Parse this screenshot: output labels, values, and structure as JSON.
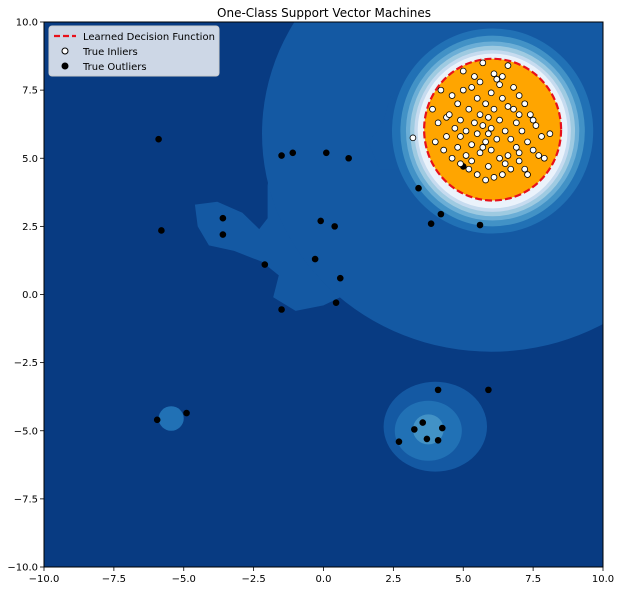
{
  "chart_data": {
    "type": "scatter",
    "title": "One-Class Support Vector Machines",
    "xlabel": "",
    "ylabel": "",
    "xlim": [
      -10,
      10
    ],
    "ylim": [
      -10,
      10
    ],
    "grid": false,
    "legend_position": "top-left",
    "xticks": [
      "−10.0",
      "−7.5",
      "−5.0",
      "−2.5",
      "0.0",
      "2.5",
      "5.0",
      "7.5",
      "10.0"
    ],
    "xtick_values": [
      -10,
      -7.5,
      -5,
      -2.5,
      0,
      2.5,
      5,
      7.5,
      10
    ],
    "yticks": [
      "10.0",
      "7.5",
      "5.0",
      "2.5",
      "0.0",
      "−2.5",
      "−5.0",
      "−7.5",
      "−10.0"
    ],
    "ytick_values": [
      10,
      7.5,
      5,
      2.5,
      0,
      -2.5,
      -5,
      -7.5,
      -10
    ],
    "colors": {
      "background": "#083b82",
      "contour_levels": [
        "#1459a3",
        "#2171b5",
        "#4292c6",
        "#6baed6",
        "#9ecae1",
        "#c6dbef",
        "#eaf2fb"
      ],
      "inlier_region": "#ffa500",
      "decision_boundary": "#e8101a",
      "inlier_marker_fill": "#ffffff",
      "outlier_marker_fill": "#000000"
    },
    "legend": [
      {
        "label": "Learned Decision Function",
        "marker": "dashed-line",
        "color": "#e8101a"
      },
      {
        "label": "True Inliers",
        "marker": "open-circle",
        "color": "#ffffff"
      },
      {
        "label": "True Outliers",
        "marker": "filled-circle",
        "color": "#000000"
      }
    ],
    "decision_boundary": {
      "center": [
        6.05,
        6.05
      ],
      "radius_x": 2.45,
      "radius_y": 2.6
    },
    "series": [
      {
        "name": "True Outliers",
        "points": [
          [
            -5.9,
            5.7
          ],
          [
            -5.8,
            2.35
          ],
          [
            -3.6,
            2.8
          ],
          [
            -3.6,
            2.2
          ],
          [
            -1.5,
            5.1
          ],
          [
            -1.1,
            5.2
          ],
          [
            0.1,
            5.2
          ],
          [
            0.9,
            5.0
          ],
          [
            -0.1,
            2.7
          ],
          [
            0.4,
            2.5
          ],
          [
            -0.3,
            1.3
          ],
          [
            -2.1,
            1.1
          ],
          [
            0.6,
            0.6
          ],
          [
            0.45,
            -0.3
          ],
          [
            -1.5,
            -0.55
          ],
          [
            -5.95,
            -4.6
          ],
          [
            -4.9,
            -4.35
          ],
          [
            4.1,
            -3.5
          ],
          [
            5.9,
            -3.5
          ],
          [
            3.55,
            -4.7
          ],
          [
            3.25,
            -4.95
          ],
          [
            4.25,
            -4.9
          ],
          [
            2.7,
            -5.4
          ],
          [
            3.7,
            -5.3
          ],
          [
            4.1,
            -5.35
          ],
          [
            3.4,
            3.9
          ],
          [
            4.2,
            2.95
          ],
          [
            3.85,
            2.6
          ],
          [
            5.6,
            2.55
          ],
          [
            5.0,
            4.7
          ]
        ]
      },
      {
        "name": "True Inliers",
        "points": [
          [
            3.2,
            5.75
          ],
          [
            3.9,
            6.8
          ],
          [
            4.2,
            7.5
          ],
          [
            4.4,
            6.5
          ],
          [
            4.1,
            6.3
          ],
          [
            4.0,
            5.6
          ],
          [
            4.3,
            5.3
          ],
          [
            4.6,
            5.0
          ],
          [
            4.8,
            5.4
          ],
          [
            4.9,
            5.8
          ],
          [
            4.7,
            6.1
          ],
          [
            4.5,
            6.6
          ],
          [
            4.8,
            7.0
          ],
          [
            5.0,
            7.5
          ],
          [
            5.0,
            8.2
          ],
          [
            5.4,
            8.0
          ],
          [
            5.7,
            8.5
          ],
          [
            6.2,
            7.9
          ],
          [
            6.6,
            8.4
          ],
          [
            6.4,
            7.2
          ],
          [
            6.8,
            7.6
          ],
          [
            7.0,
            7.3
          ],
          [
            7.2,
            7.0
          ],
          [
            7.4,
            6.6
          ],
          [
            7.6,
            6.2
          ],
          [
            7.8,
            5.8
          ],
          [
            7.5,
            5.3
          ],
          [
            7.7,
            5.1
          ],
          [
            7.9,
            5.0
          ],
          [
            7.2,
            4.6
          ],
          [
            7.0,
            4.9
          ],
          [
            6.7,
            4.6
          ],
          [
            6.4,
            4.4
          ],
          [
            6.1,
            4.3
          ],
          [
            5.8,
            4.2
          ],
          [
            5.5,
            4.4
          ],
          [
            5.2,
            4.6
          ],
          [
            5.1,
            5.1
          ],
          [
            5.3,
            5.5
          ],
          [
            5.5,
            5.9
          ],
          [
            5.7,
            6.2
          ],
          [
            5.9,
            6.5
          ],
          [
            6.1,
            6.8
          ],
          [
            6.3,
            6.4
          ],
          [
            6.5,
            6.0
          ],
          [
            6.7,
            5.7
          ],
          [
            6.9,
            5.4
          ],
          [
            6.6,
            5.1
          ],
          [
            6.3,
            5.0
          ],
          [
            6.0,
            5.3
          ],
          [
            5.8,
            5.6
          ],
          [
            5.6,
            5.2
          ],
          [
            5.4,
            6.3
          ],
          [
            5.2,
            6.8
          ],
          [
            5.5,
            7.2
          ],
          [
            5.8,
            7.0
          ],
          [
            6.0,
            7.4
          ],
          [
            6.3,
            7.7
          ],
          [
            6.6,
            6.9
          ],
          [
            6.9,
            6.3
          ],
          [
            7.1,
            6.0
          ],
          [
            7.3,
            5.6
          ],
          [
            7.0,
            5.2
          ],
          [
            6.2,
            5.7
          ],
          [
            5.9,
            5.9
          ],
          [
            5.6,
            6.6
          ],
          [
            5.3,
            7.6
          ],
          [
            4.9,
            6.4
          ],
          [
            4.6,
            7.3
          ],
          [
            5.1,
            6.0
          ],
          [
            6.8,
            6.8
          ],
          [
            7.5,
            6.4
          ],
          [
            8.1,
            5.9
          ],
          [
            7.3,
            4.4
          ],
          [
            6.5,
            4.8
          ],
          [
            5.9,
            4.7
          ],
          [
            5.3,
            4.9
          ],
          [
            4.9,
            4.8
          ],
          [
            4.4,
            5.8
          ],
          [
            6.1,
            8.1
          ],
          [
            5.6,
            7.8
          ],
          [
            6.4,
            8.0
          ],
          [
            7.0,
            6.6
          ],
          [
            6.0,
            6.1
          ],
          [
            5.7,
            5.4
          ]
        ]
      }
    ]
  }
}
